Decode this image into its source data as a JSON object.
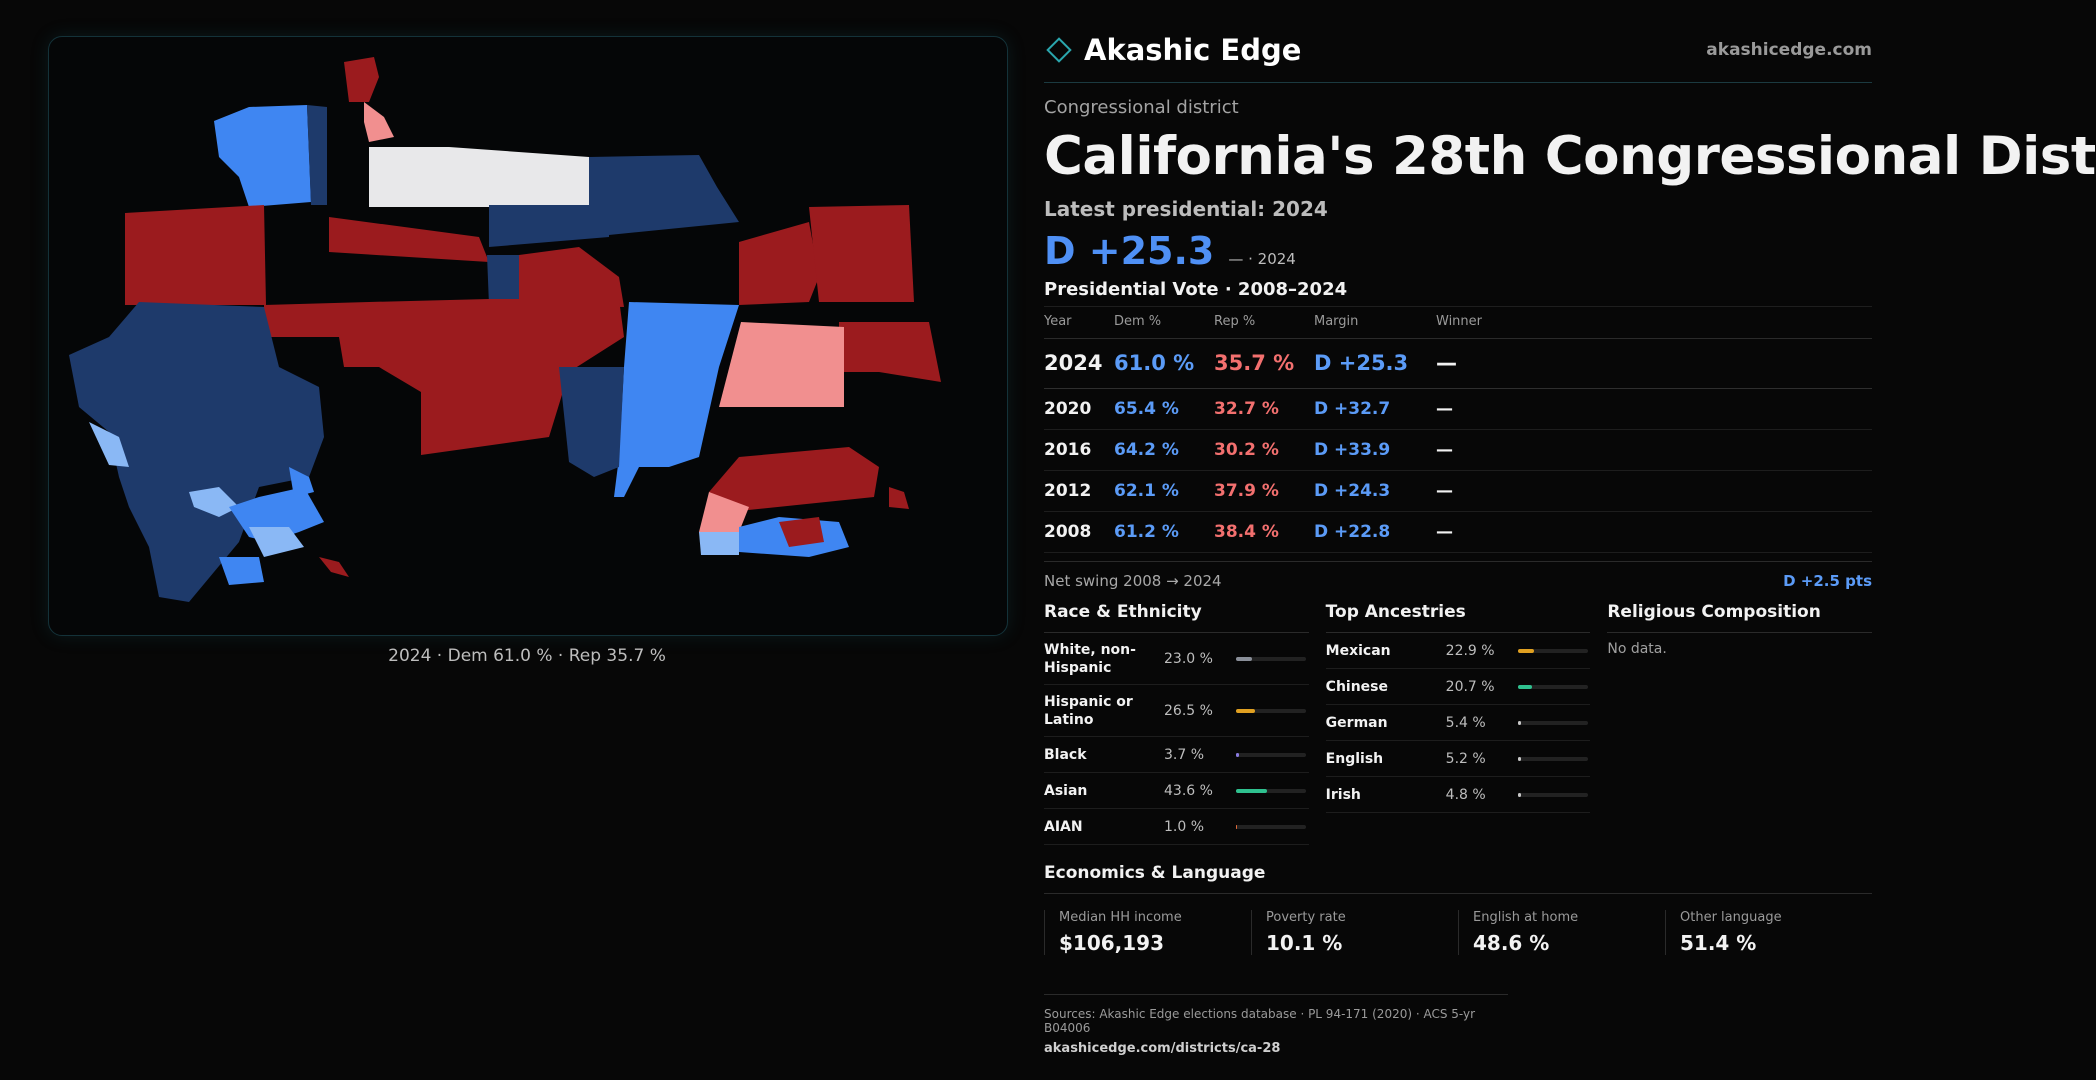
{
  "map": {
    "caption": "2024 · Dem 61.0 % · Rep 35.7 %",
    "colors": {
      "dem_strong": "#1e3a6b",
      "dem_lean": "#3f86f2",
      "dem_light": "#8ab8f5",
      "rep_strong": "#9b1b1e",
      "rep_lean": "#f18f8f",
      "toss": "#e8e8ea"
    }
  },
  "header": {
    "brand": "Akashic Edge",
    "url": "akashicedge.com"
  },
  "district": {
    "kicker": "Congressional district",
    "title": "California's 28th Congressional Dist",
    "latest": "Latest presidential: 2024",
    "margin": "D +25.3",
    "margin_sub": "— · 2024"
  },
  "presidential": {
    "title": "Presidential Vote · 2008–2024",
    "headers": [
      "Year",
      "Dem %",
      "Rep %",
      "Margin",
      "Winner"
    ],
    "rows": [
      {
        "year": "2024",
        "dem": "61.0 %",
        "rep": "35.7 %",
        "margin": "D +25.3",
        "winner": "—"
      },
      {
        "year": "2020",
        "dem": "65.4 %",
        "rep": "32.7 %",
        "margin": "D +32.7",
        "winner": "—"
      },
      {
        "year": "2016",
        "dem": "64.2 %",
        "rep": "30.2 %",
        "margin": "D +33.9",
        "winner": "—"
      },
      {
        "year": "2012",
        "dem": "62.1 %",
        "rep": "37.9 %",
        "margin": "D +24.3",
        "winner": "—"
      },
      {
        "year": "2008",
        "dem": "61.2 %",
        "rep": "38.4 %",
        "margin": "D +22.8",
        "winner": "—"
      }
    ],
    "swing_label": "Net swing 2008 → 2024",
    "swing_value": "D +2.5 pts"
  },
  "race": {
    "title": "Race & Ethnicity",
    "items": [
      {
        "label": "White, non-Hispanic",
        "value": "23.0 %",
        "pct": 23.0,
        "color": "#8a8f99"
      },
      {
        "label": "Hispanic or Latino",
        "value": "26.5 %",
        "pct": 26.5,
        "color": "#e0a021"
      },
      {
        "label": "Black",
        "value": "3.7 %",
        "pct": 3.7,
        "color": "#8a7be0"
      },
      {
        "label": "Asian",
        "value": "43.6 %",
        "pct": 43.6,
        "color": "#2fc18f"
      },
      {
        "label": "AIAN",
        "value": "1.0 %",
        "pct": 1.0,
        "color": "#e06a3a"
      }
    ]
  },
  "ancestry": {
    "title": "Top Ancestries",
    "items": [
      {
        "label": "Mexican",
        "value": "22.9 %",
        "pct": 22.9,
        "color": "#e0a021"
      },
      {
        "label": "Chinese",
        "value": "20.7 %",
        "pct": 20.7,
        "color": "#2fc18f"
      },
      {
        "label": "German",
        "value": "5.4 %",
        "pct": 5.4,
        "color": "#c9c9c9"
      },
      {
        "label": "English",
        "value": "5.2 %",
        "pct": 5.2,
        "color": "#c9c9c9"
      },
      {
        "label": "Irish",
        "value": "4.8 %",
        "pct": 4.8,
        "color": "#c9c9c9"
      }
    ]
  },
  "religion": {
    "title": "Religious Composition",
    "empty": "No data."
  },
  "economics": {
    "title": "Economics & Language",
    "stats": [
      {
        "label": "Median HH income",
        "value": "$106,193"
      },
      {
        "label": "Poverty rate",
        "value": "10.1 %"
      },
      {
        "label": "English at home",
        "value": "48.6 %"
      },
      {
        "label": "Other language",
        "value": "51.4 %"
      }
    ]
  },
  "footer": {
    "sources": "Sources: Akashic Edge elections database · PL 94-171 (2020) · ACS 5-yr B04006",
    "url": "akashicedge.com/districts/ca-28"
  }
}
